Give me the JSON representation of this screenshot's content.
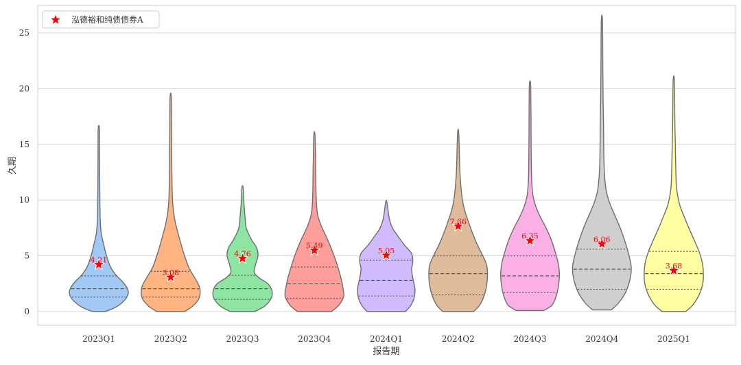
{
  "chart_data": {
    "type": "violin",
    "title": "",
    "xlabel": "报告期",
    "ylabel": "久期",
    "ylim": [
      -1.3,
      27.5
    ],
    "yticks": [
      0,
      5,
      10,
      15,
      20,
      25
    ],
    "grid": true,
    "legend": {
      "position": "top-left",
      "entries": [
        {
          "label": "泓德裕和纯债债券A",
          "marker": "star",
          "color": "#ff0000"
        }
      ]
    },
    "categories": [
      "2023Q1",
      "2023Q2",
      "2023Q3",
      "2023Q4",
      "2024Q1",
      "2024Q2",
      "2024Q3",
      "2024Q4",
      "2025Q1"
    ],
    "violins": [
      {
        "category": "2023Q1",
        "fill": "#a1c9f4",
        "min": 0.0,
        "max": 16.4,
        "q1": 1.3,
        "median": 2.05,
        "q3": 3.2,
        "profile": [
          [
            0,
            0.2
          ],
          [
            0.4,
            0.55
          ],
          [
            1.0,
            0.83
          ],
          [
            1.6,
            0.95
          ],
          [
            2.1,
            0.92
          ],
          [
            2.7,
            0.76
          ],
          [
            3.3,
            0.55
          ],
          [
            4.0,
            0.38
          ],
          [
            5.0,
            0.25
          ],
          [
            6.0,
            0.16
          ],
          [
            7.0,
            0.08
          ],
          [
            8.0,
            0.05
          ],
          [
            9.0,
            0.04
          ],
          [
            10.0,
            0.035
          ],
          [
            12.0,
            0.03
          ],
          [
            14.0,
            0.025
          ],
          [
            16.4,
            0.02
          ]
        ]
      },
      {
        "category": "2023Q2",
        "fill": "#ffb482",
        "min": 0.0,
        "max": 19.2,
        "q1": 1.3,
        "median": 2.05,
        "q3": 3.6,
        "profile": [
          [
            0,
            0.45
          ],
          [
            0.5,
            0.72
          ],
          [
            1.2,
            0.92
          ],
          [
            2.0,
            0.95
          ],
          [
            2.6,
            0.87
          ],
          [
            3.2,
            0.74
          ],
          [
            4.0,
            0.58
          ],
          [
            5.0,
            0.45
          ],
          [
            6.0,
            0.34
          ],
          [
            7.0,
            0.24
          ],
          [
            8.0,
            0.15
          ],
          [
            9.0,
            0.09
          ],
          [
            10.0,
            0.06
          ],
          [
            12.0,
            0.04
          ],
          [
            14.0,
            0.035
          ],
          [
            16.0,
            0.03
          ],
          [
            19.2,
            0.02
          ]
        ]
      },
      {
        "category": "2023Q3",
        "fill": "#8de5a1",
        "min": 0.0,
        "max": 11.1,
        "q1": 1.1,
        "median": 2.05,
        "q3": 3.25,
        "profile": [
          [
            0,
            0.4
          ],
          [
            0.5,
            0.72
          ],
          [
            1.2,
            0.93
          ],
          [
            1.9,
            0.95
          ],
          [
            2.5,
            0.82
          ],
          [
            3.0,
            0.55
          ],
          [
            3.5,
            0.38
          ],
          [
            4.2,
            0.42
          ],
          [
            5.0,
            0.5
          ],
          [
            5.7,
            0.46
          ],
          [
            6.5,
            0.28
          ],
          [
            7.5,
            0.12
          ],
          [
            8.5,
            0.08
          ],
          [
            9.5,
            0.05
          ],
          [
            11.1,
            0.02
          ]
        ]
      },
      {
        "category": "2023Q4",
        "fill": "#ff9f9b",
        "min": 0.0,
        "max": 15.8,
        "q1": 1.2,
        "median": 2.5,
        "q3": 4.0,
        "profile": [
          [
            0,
            0.55
          ],
          [
            0.6,
            0.8
          ],
          [
            1.4,
            0.95
          ],
          [
            2.2,
            0.92
          ],
          [
            3.0,
            0.86
          ],
          [
            3.6,
            0.8
          ],
          [
            4.5,
            0.7
          ],
          [
            5.5,
            0.57
          ],
          [
            6.5,
            0.42
          ],
          [
            7.5,
            0.25
          ],
          [
            8.5,
            0.12
          ],
          [
            9.5,
            0.07
          ],
          [
            11.0,
            0.05
          ],
          [
            13.0,
            0.04
          ],
          [
            15.8,
            0.02
          ]
        ]
      },
      {
        "category": "2024Q1",
        "fill": "#d0bbff",
        "min": 0.0,
        "max": 9.8,
        "q1": 1.4,
        "median": 2.8,
        "q3": 4.6,
        "profile": [
          [
            0,
            0.62
          ],
          [
            0.5,
            0.78
          ],
          [
            1.2,
            0.9
          ],
          [
            2.0,
            0.93
          ],
          [
            3.0,
            0.86
          ],
          [
            3.8,
            0.82
          ],
          [
            4.5,
            0.86
          ],
          [
            5.2,
            0.82
          ],
          [
            6.0,
            0.58
          ],
          [
            6.8,
            0.37
          ],
          [
            7.5,
            0.2
          ],
          [
            8.3,
            0.1
          ],
          [
            9.8,
            0.02
          ]
        ]
      },
      {
        "category": "2024Q2",
        "fill": "#debb9b",
        "min": 0.0,
        "max": 16.0,
        "q1": 1.5,
        "median": 3.4,
        "q3": 5.0,
        "profile": [
          [
            0,
            0.5
          ],
          [
            0.6,
            0.7
          ],
          [
            1.5,
            0.85
          ],
          [
            2.5,
            0.93
          ],
          [
            3.5,
            0.95
          ],
          [
            4.2,
            0.92
          ],
          [
            5.0,
            0.8
          ],
          [
            6.0,
            0.62
          ],
          [
            7.0,
            0.47
          ],
          [
            8.0,
            0.34
          ],
          [
            9.0,
            0.22
          ],
          [
            10.0,
            0.14
          ],
          [
            11.5,
            0.08
          ],
          [
            13.0,
            0.05
          ],
          [
            16.0,
            0.02
          ]
        ]
      },
      {
        "category": "2024Q3",
        "fill": "#fab0e4",
        "min": 0.1,
        "max": 20.4,
        "q1": 1.7,
        "median": 3.2,
        "q3": 5.0,
        "profile": [
          [
            0.1,
            0.45
          ],
          [
            0.6,
            0.72
          ],
          [
            1.5,
            0.86
          ],
          [
            2.5,
            0.93
          ],
          [
            3.5,
            0.95
          ],
          [
            4.5,
            0.9
          ],
          [
            5.5,
            0.8
          ],
          [
            6.5,
            0.68
          ],
          [
            7.5,
            0.52
          ],
          [
            8.5,
            0.33
          ],
          [
            9.5,
            0.18
          ],
          [
            10.5,
            0.09
          ],
          [
            12.0,
            0.05
          ],
          [
            15.0,
            0.035
          ],
          [
            18.0,
            0.03
          ],
          [
            20.4,
            0.02
          ]
        ]
      },
      {
        "category": "2024Q4",
        "fill": "#cfcfcf",
        "min": 0.15,
        "max": 26.1,
        "q1": 2.0,
        "median": 3.8,
        "q3": 5.6,
        "profile": [
          [
            0.15,
            0.3
          ],
          [
            0.8,
            0.55
          ],
          [
            1.8,
            0.78
          ],
          [
            3.0,
            0.92
          ],
          [
            4.0,
            0.95
          ],
          [
            5.0,
            0.88
          ],
          [
            6.0,
            0.78
          ],
          [
            7.0,
            0.66
          ],
          [
            8.0,
            0.52
          ],
          [
            9.0,
            0.36
          ],
          [
            10.0,
            0.22
          ],
          [
            11.0,
            0.13
          ],
          [
            12.5,
            0.08
          ],
          [
            14.5,
            0.06
          ],
          [
            16.5,
            0.055
          ],
          [
            19.0,
            0.04
          ],
          [
            22.0,
            0.03
          ],
          [
            26.1,
            0.02
          ]
        ]
      },
      {
        "category": "2025Q1",
        "fill": "#fffea3",
        "min": 0.0,
        "max": 20.7,
        "q1": 2.0,
        "median": 3.4,
        "q3": 5.4,
        "profile": [
          [
            0,
            0.38
          ],
          [
            0.6,
            0.62
          ],
          [
            1.5,
            0.82
          ],
          [
            2.4,
            0.93
          ],
          [
            3.3,
            0.96
          ],
          [
            4.3,
            0.93
          ],
          [
            5.3,
            0.83
          ],
          [
            6.3,
            0.68
          ],
          [
            7.3,
            0.52
          ],
          [
            8.5,
            0.34
          ],
          [
            9.5,
            0.2
          ],
          [
            10.5,
            0.12
          ],
          [
            11.5,
            0.08
          ],
          [
            13.5,
            0.06
          ],
          [
            15.0,
            0.05
          ],
          [
            17.0,
            0.035
          ],
          [
            20.7,
            0.02
          ]
        ]
      }
    ],
    "markers": [
      {
        "category": "2023Q1",
        "value": 4.21,
        "label": "4.21"
      },
      {
        "category": "2023Q2",
        "value": 3.08,
        "label": "3.08"
      },
      {
        "category": "2023Q3",
        "value": 4.76,
        "label": "4.76"
      },
      {
        "category": "2023Q4",
        "value": 5.49,
        "label": "5.49"
      },
      {
        "category": "2024Q1",
        "value": 5.05,
        "label": "5.05"
      },
      {
        "category": "2024Q2",
        "value": 7.66,
        "label": "7.66"
      },
      {
        "category": "2024Q3",
        "value": 6.35,
        "label": "6.35"
      },
      {
        "category": "2024Q4",
        "value": 6.06,
        "label": "6.06"
      },
      {
        "category": "2025Q1",
        "value": 3.68,
        "label": "3.68"
      }
    ],
    "colors": {
      "outline": "#6d6d6d",
      "grid": "#d6d6d6",
      "axis_text": "#333333",
      "marker": "#ff0000"
    }
  }
}
